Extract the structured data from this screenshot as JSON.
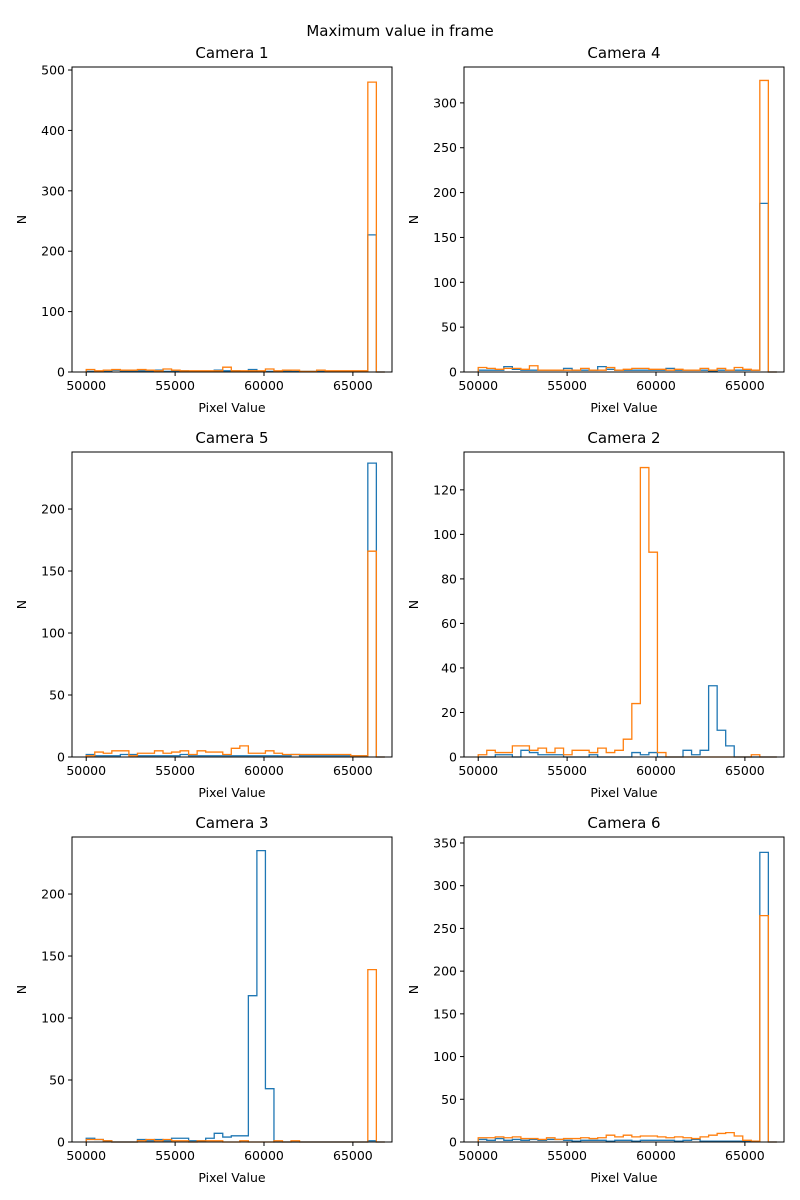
{
  "figure_title": "Maximum value in frame",
  "colors": {
    "series_1": "#1f77b4",
    "series_2": "#ff7f0e"
  },
  "chart_data": [
    {
      "type": "histogram",
      "title": "Camera 1",
      "xlabel": "Pixel Value",
      "ylabel": "N",
      "xlim": [
        49200,
        67200
      ],
      "ylim": [
        0,
        505
      ],
      "xticks": [
        50000,
        55000,
        60000,
        65000
      ],
      "yticks": [
        0,
        100,
        200,
        300,
        400,
        500
      ],
      "bin_start": 50000,
      "bin_width": 480,
      "series": [
        {
          "name": "series_1",
          "color": "#1f77b4",
          "values": [
            1,
            1,
            1,
            3,
            2,
            2,
            2,
            2,
            3,
            1,
            2,
            2,
            1,
            1,
            1,
            3,
            2,
            2,
            1,
            4,
            1,
            1,
            1,
            2,
            1,
            1,
            1,
            1,
            1,
            1,
            1,
            1,
            1,
            227,
            0
          ]
        },
        {
          "name": "series_2",
          "color": "#ff7f0e",
          "values": [
            4,
            2,
            3,
            4,
            3,
            3,
            4,
            3,
            2,
            5,
            3,
            2,
            2,
            2,
            2,
            2,
            8,
            2,
            2,
            2,
            2,
            5,
            2,
            3,
            3,
            1,
            1,
            3,
            2,
            2,
            2,
            2,
            2,
            480,
            0
          ]
        }
      ]
    },
    {
      "type": "histogram",
      "title": "Camera 4",
      "xlabel": "Pixel Value",
      "ylabel": "N",
      "xlim": [
        49200,
        67200
      ],
      "ylim": [
        0,
        340
      ],
      "xticks": [
        50000,
        55000,
        60000,
        65000
      ],
      "yticks": [
        0,
        50,
        100,
        150,
        200,
        250,
        300
      ],
      "bin_start": 50000,
      "bin_width": 480,
      "series": [
        {
          "name": "series_1",
          "color": "#1f77b4",
          "values": [
            2,
            2,
            2,
            6,
            3,
            2,
            2,
            2,
            2,
            2,
            4,
            2,
            2,
            2,
            6,
            3,
            2,
            2,
            2,
            2,
            2,
            2,
            4,
            2,
            2,
            2,
            2,
            1,
            2,
            2,
            2,
            2,
            2,
            188,
            0
          ]
        },
        {
          "name": "series_2",
          "color": "#ff7f0e",
          "values": [
            5,
            4,
            3,
            4,
            4,
            3,
            7,
            2,
            2,
            2,
            2,
            2,
            4,
            2,
            2,
            5,
            2,
            3,
            4,
            4,
            3,
            3,
            2,
            3,
            2,
            2,
            4,
            2,
            4,
            2,
            5,
            3,
            2,
            325,
            0
          ]
        }
      ]
    },
    {
      "type": "histogram",
      "title": "Camera 5",
      "xlabel": "Pixel Value",
      "ylabel": "N",
      "xlim": [
        49200,
        67200
      ],
      "ylim": [
        0,
        246
      ],
      "xticks": [
        50000,
        55000,
        60000,
        65000
      ],
      "yticks": [
        0,
        50,
        100,
        150,
        200
      ],
      "bin_start": 50000,
      "bin_width": 480,
      "series": [
        {
          "name": "series_1",
          "color": "#1f77b4",
          "values": [
            2,
            1,
            1,
            1,
            2,
            2,
            1,
            1,
            1,
            1,
            1,
            2,
            1,
            1,
            1,
            1,
            1,
            1,
            1,
            1,
            1,
            1,
            1,
            1,
            2,
            1,
            1,
            1,
            1,
            1,
            1,
            1,
            1,
            237,
            0
          ]
        },
        {
          "name": "series_2",
          "color": "#ff7f0e",
          "values": [
            1,
            4,
            3,
            5,
            5,
            1,
            3,
            3,
            5,
            3,
            4,
            5,
            2,
            5,
            4,
            4,
            2,
            7,
            9,
            3,
            3,
            5,
            3,
            2,
            2,
            2,
            2,
            2,
            2,
            2,
            2,
            1,
            1,
            166,
            0
          ]
        }
      ]
    },
    {
      "type": "histogram",
      "title": "Camera 2",
      "xlabel": "Pixel Value",
      "ylabel": "N",
      "xlim": [
        49200,
        67200
      ],
      "ylim": [
        0,
        137
      ],
      "xticks": [
        50000,
        55000,
        60000,
        65000
      ],
      "yticks": [
        0,
        20,
        40,
        60,
        80,
        100,
        120
      ],
      "bin_start": 50000,
      "bin_width": 480,
      "series": [
        {
          "name": "series_1",
          "color": "#1f77b4",
          "values": [
            0,
            0,
            1,
            1,
            0,
            3,
            2,
            1,
            1,
            1,
            0,
            0,
            0,
            1,
            0,
            0,
            0,
            0,
            2,
            1,
            2,
            0,
            0,
            0,
            3,
            1,
            3,
            32,
            12,
            5,
            0,
            0,
            0,
            0,
            0
          ]
        },
        {
          "name": "series_2",
          "color": "#ff7f0e",
          "values": [
            1,
            3,
            2,
            2,
            5,
            5,
            3,
            4,
            2,
            4,
            1,
            3,
            3,
            2,
            4,
            2,
            3,
            8,
            24,
            130,
            92,
            2,
            0,
            0,
            0,
            0,
            0,
            0,
            0,
            0,
            0,
            0,
            1,
            0,
            0
          ]
        }
      ]
    },
    {
      "type": "histogram",
      "title": "Camera 3",
      "xlabel": "Pixel Value",
      "ylabel": "N",
      "xlim": [
        49200,
        67200
      ],
      "ylim": [
        0,
        246
      ],
      "xticks": [
        50000,
        55000,
        60000,
        65000
      ],
      "yticks": [
        0,
        50,
        100,
        150,
        200
      ],
      "bin_start": 50000,
      "bin_width": 480,
      "series": [
        {
          "name": "series_1",
          "color": "#1f77b4",
          "values": [
            3,
            2,
            1,
            0,
            0,
            0,
            2,
            1,
            2,
            1,
            3,
            3,
            1,
            1,
            3,
            7,
            4,
            5,
            5,
            118,
            235,
            43,
            0,
            0,
            0,
            0,
            0,
            0,
            0,
            0,
            0,
            0,
            0,
            1,
            0
          ]
        },
        {
          "name": "series_2",
          "color": "#ff7f0e",
          "values": [
            2,
            2,
            1,
            0,
            0,
            0,
            1,
            2,
            1,
            2,
            1,
            1,
            0,
            1,
            1,
            1,
            0,
            0,
            1,
            0,
            0,
            0,
            1,
            0,
            1,
            0,
            0,
            0,
            0,
            0,
            0,
            0,
            0,
            139,
            0
          ]
        }
      ]
    },
    {
      "type": "histogram",
      "title": "Camera 6",
      "xlabel": "Pixel Value",
      "ylabel": "N",
      "xlim": [
        49200,
        67200
      ],
      "ylim": [
        0,
        357
      ],
      "xticks": [
        50000,
        55000,
        60000,
        65000
      ],
      "yticks": [
        0,
        50,
        100,
        150,
        200,
        250,
        300,
        350
      ],
      "bin_start": 50000,
      "bin_width": 480,
      "series": [
        {
          "name": "series_1",
          "color": "#1f77b4",
          "values": [
            3,
            2,
            4,
            2,
            3,
            2,
            3,
            2,
            3,
            3,
            2,
            1,
            2,
            2,
            2,
            1,
            2,
            2,
            1,
            2,
            2,
            2,
            2,
            1,
            2,
            3,
            1,
            1,
            1,
            1,
            1,
            1,
            1,
            339,
            0
          ]
        },
        {
          "name": "series_2",
          "color": "#ff7f0e",
          "values": [
            5,
            5,
            6,
            5,
            6,
            4,
            4,
            3,
            5,
            3,
            4,
            4,
            5,
            4,
            5,
            8,
            6,
            8,
            6,
            7,
            7,
            6,
            5,
            6,
            5,
            4,
            6,
            8,
            10,
            11,
            7,
            2,
            1,
            265,
            0
          ]
        }
      ]
    }
  ]
}
